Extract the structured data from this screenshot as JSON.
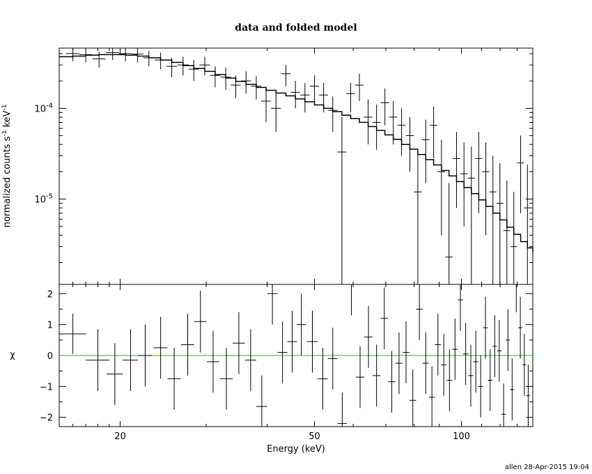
{
  "chart_data": [
    {
      "type": "line",
      "title": "data and folded model",
      "ylabel": "normalized counts s",
      "ylabel_sup1": "-1",
      "ylabel_mid": " keV",
      "ylabel_sup2": "-1",
      "xscale": "log",
      "yscale": "log",
      "xlim": [
        15,
        140
      ],
      "ylim": [
        1.15e-06,
        0.00046
      ],
      "yticks": [
        {
          "value": 0.0001,
          "base": "10",
          "exp": "-4"
        },
        {
          "value": 1e-05,
          "base": "10",
          "exp": "-5"
        }
      ],
      "series": [
        {
          "kind": "data",
          "x": [
            16.0,
            17.0,
            18.1,
            19.3,
            20.5,
            21.7,
            22.9,
            24.2,
            25.5,
            26.9,
            28.3,
            29.8,
            31.3,
            32.9,
            34.5,
            36.2,
            38.0,
            39.8,
            41.7,
            43.7,
            45.7,
            47.8,
            50.0,
            52.2,
            54.5,
            56.9,
            59.3,
            61.8,
            64.4,
            67.0,
            69.7,
            72.5,
            75.4,
            78.4,
            81.4,
            84.5,
            87.7,
            91.0,
            94.3,
            97.7,
            101.2,
            104.8,
            108.5,
            112.2,
            116.0,
            119.9,
            123.9,
            128.0,
            132.2,
            136.5
          ],
          "xerr": [
            0.5,
            0.5,
            0.55,
            0.6,
            0.6,
            0.6,
            0.6,
            0.65,
            0.65,
            0.7,
            0.7,
            0.75,
            0.75,
            0.8,
            0.8,
            0.85,
            0.9,
            0.9,
            0.95,
            1.0,
            1.0,
            1.05,
            1.1,
            1.1,
            1.15,
            1.2,
            1.2,
            1.25,
            1.3,
            1.3,
            1.35,
            1.4,
            1.45,
            1.5,
            1.5,
            1.55,
            1.6,
            1.65,
            1.65,
            1.7,
            1.75,
            1.8,
            1.85,
            1.85,
            1.9,
            1.95,
            2.0,
            2.05,
            2.1,
            2.15
          ],
          "y": [
            0.0004,
            0.00039,
            0.00035,
            0.00041,
            0.0004,
            0.000395,
            0.00036,
            0.00034,
            0.00029,
            0.0003,
            0.00027,
            0.0003,
            0.00023,
            0.00022,
            0.00018,
            0.0002,
            0.000175,
            0.00012,
            0.0001,
            0.00024,
            0.00015,
            0.00014,
            0.000175,
            0.00014,
            9.5e-05,
            3.3e-05,
            0.000145,
            0.00018,
            8e-05,
            7e-05,
            0.000115,
            8e-05,
            6.5e-05,
            5e-05,
            1.2e-05,
            4.5e-05,
            6.5e-05,
            2e-05,
            2.3e-06,
            2.8e-05,
            1.9e-05,
            1.7e-05,
            2.8e-05,
            2e-05,
            1.2e-05,
            9e-06,
            4.5e-06,
            3e-06,
            2.5e-05,
            8e-06
          ],
          "ylo": [
            0.00033,
            0.00032,
            0.00028,
            0.00034,
            0.00033,
            0.00032,
            0.00029,
            0.00027,
            0.00022,
            0.00023,
            0.0002,
            0.00023,
            0.00017,
            0.00016,
            0.00013,
            0.000145,
            0.000125,
            7e-05,
            5.5e-05,
            0.000175,
            0.0001,
            9e-05,
            0.00012,
            9e-05,
            5.5e-05,
            1.15e-06,
            9e-05,
            0.00012,
            4e-05,
            3.5e-05,
            6.5e-05,
            4e-05,
            3e-05,
            2e-05,
            1.15e-06,
            1.5e-05,
            2.8e-05,
            4e-06,
            1.15e-06,
            8e-06,
            5e-06,
            1.15e-06,
            7e-06,
            4e-06,
            1.15e-06,
            1.15e-06,
            1.15e-06,
            1.15e-06,
            7e-06,
            1.15e-06
          ],
          "yhi": [
            0.00046,
            0.00045,
            0.00042,
            0.00046,
            0.00046,
            0.00046,
            0.00043,
            0.00041,
            0.00036,
            0.00037,
            0.00034,
            0.00037,
            0.00029,
            0.00028,
            0.00023,
            0.000255,
            0.000225,
            0.00017,
            0.00015,
            0.0003,
            0.0002,
            0.00019,
            0.00023,
            0.00019,
            0.000135,
            8e-05,
            0.00019,
            0.00024,
            0.000125,
            0.00011,
            0.000165,
            0.00012,
            0.0001,
            8e-05,
            3.5e-05,
            7.5e-05,
            0.000105,
            4.5e-05,
            1.5e-05,
            5.5e-05,
            4.2e-05,
            3.8e-05,
            5.5e-05,
            4.2e-05,
            3e-05,
            2.5e-05,
            1.6e-05,
            1.2e-05,
            5e-05,
            2.4e-05
          ]
        },
        {
          "kind": "model",
          "x": [
            15.0,
            16.0,
            17.0,
            18.1,
            19.3,
            20.5,
            21.7,
            22.9,
            24.2,
            25.5,
            26.9,
            28.3,
            29.8,
            31.3,
            32.9,
            34.5,
            36.2,
            38.0,
            39.8,
            41.7,
            43.7,
            45.7,
            47.8,
            50.0,
            52.2,
            54.5,
            56.9,
            59.3,
            61.8,
            64.4,
            67.0,
            69.7,
            72.5,
            75.4,
            78.4,
            81.4,
            84.5,
            87.7,
            91.0,
            94.3,
            97.7,
            101.2,
            104.8,
            108.5,
            112.2,
            116.0,
            119.9,
            123.9,
            128.0,
            132.2,
            136.5,
            140.0
          ],
          "y": [
            0.00037,
            0.000375,
            0.000385,
            0.00039,
            0.00039,
            0.000385,
            0.000375,
            0.00036,
            0.00034,
            0.00032,
            0.000295,
            0.000275,
            0.000255,
            0.000235,
            0.000215,
            0.000198,
            0.000183,
            0.00017,
            0.000158,
            0.000147,
            0.000137,
            0.000127,
            0.000118,
            0.000109,
            0.0001,
            9.2e-05,
            8.4e-05,
            7.7e-05,
            7e-05,
            6.3e-05,
            5.7e-05,
            5.1e-05,
            4.55e-05,
            4e-05,
            3.55e-05,
            3.1e-05,
            2.72e-05,
            2.38e-05,
            2.07e-05,
            1.8e-05,
            1.56e-05,
            1.34e-05,
            1.15e-05,
            9.8e-06,
            8.3e-06,
            7e-06,
            5.9e-06,
            4.9e-06,
            4.1e-06,
            3.4e-06,
            2.9e-06,
            2.6e-06
          ]
        }
      ]
    },
    {
      "type": "scatter",
      "ylabel": "χ",
      "xlabel": "Energy (keV)",
      "xscale": "log",
      "xlim": [
        15,
        140
      ],
      "ylim": [
        -2.3,
        2.3
      ],
      "yticks": [
        {
          "value": 2,
          "label": "2"
        },
        {
          "value": 1,
          "label": "1"
        },
        {
          "value": 0,
          "label": "0"
        },
        {
          "value": -1,
          "label": "−1"
        },
        {
          "value": -2,
          "label": "−2"
        }
      ],
      "xticks": [
        {
          "value": 20,
          "label": "20"
        },
        {
          "value": 50,
          "label": "50"
        },
        {
          "value": 100,
          "label": "100"
        }
      ],
      "zero_line_color": "#00cc00",
      "series": [
        {
          "x": [
            16.0,
            18.0,
            19.5,
            21.0,
            22.5,
            24.2,
            25.8,
            27.5,
            29.2,
            31.0,
            33.0,
            35.0,
            37.0,
            39.0,
            41.0,
            43.0,
            45.0,
            47.0,
            49.5,
            52.0,
            54.5,
            57.0,
            59.5,
            62.0,
            64.5,
            67.0,
            69.5,
            72.0,
            74.5,
            77.0,
            79.5,
            82.0,
            84.5,
            87.0,
            89.5,
            92.0,
            94.5,
            97.0,
            99.5,
            102.0,
            104.5,
            107.0,
            109.5,
            112.0,
            114.5,
            117.0,
            119.5,
            122.0,
            124.5,
            127.0,
            129.5,
            132.0,
            134.5,
            137.0
          ],
          "xerr": [
            1.0,
            1.0,
            0.75,
            0.75,
            0.75,
            0.8,
            0.8,
            0.85,
            0.85,
            0.9,
            1.0,
            1.0,
            1.0,
            1.0,
            1.0,
            1.0,
            1.0,
            1.0,
            1.25,
            1.25,
            1.25,
            1.25,
            1.25,
            1.25,
            1.25,
            1.25,
            1.25,
            1.25,
            1.25,
            1.25,
            1.25,
            1.25,
            1.25,
            1.25,
            1.25,
            1.25,
            1.25,
            1.25,
            1.25,
            1.25,
            1.25,
            1.25,
            1.25,
            1.25,
            1.25,
            1.25,
            1.25,
            1.25,
            1.25,
            1.25,
            1.25,
            1.25,
            1.25,
            1.25
          ],
          "y": [
            0.7,
            -0.15,
            -0.6,
            -0.15,
            0.0,
            0.25,
            -0.75,
            0.35,
            1.1,
            -0.2,
            -0.75,
            0.4,
            -0.15,
            -1.65,
            2.0,
            0.1,
            0.45,
            1.0,
            0.45,
            -0.75,
            -0.1,
            -2.2,
            2.3,
            -0.7,
            0.6,
            -0.65,
            1.2,
            -0.85,
            -0.25,
            0.1,
            -1.45,
            1.5,
            -0.25,
            -1.35,
            0.35,
            -0.3,
            -0.8,
            0.2,
            1.8,
            0.05,
            -0.65,
            -0.2,
            -1.0,
            0.9,
            -0.8,
            0.3,
            0.15,
            -1.9,
            0.5,
            -1.1,
            2.4,
            0.9,
            -0.3,
            -1.3
          ],
          "yerr": [
            0.65,
            1.0,
            1.0,
            1.0,
            1.0,
            1.0,
            1.0,
            1.0,
            1.0,
            1.0,
            1.0,
            1.0,
            1.0,
            1.0,
            1.0,
            1.0,
            1.0,
            1.0,
            1.0,
            1.0,
            1.0,
            1.0,
            1.0,
            1.0,
            1.0,
            1.0,
            1.0,
            1.0,
            1.0,
            1.0,
            1.0,
            1.0,
            1.0,
            1.0,
            1.0,
            1.0,
            1.0,
            1.0,
            1.0,
            1.0,
            1.0,
            1.0,
            1.0,
            1.0,
            1.0,
            1.0,
            1.0,
            1.0,
            1.0,
            1.0,
            1.0,
            1.0,
            1.0,
            1.0
          ]
        }
      ]
    }
  ],
  "footer": "allen 28-Apr-2015 19:04"
}
